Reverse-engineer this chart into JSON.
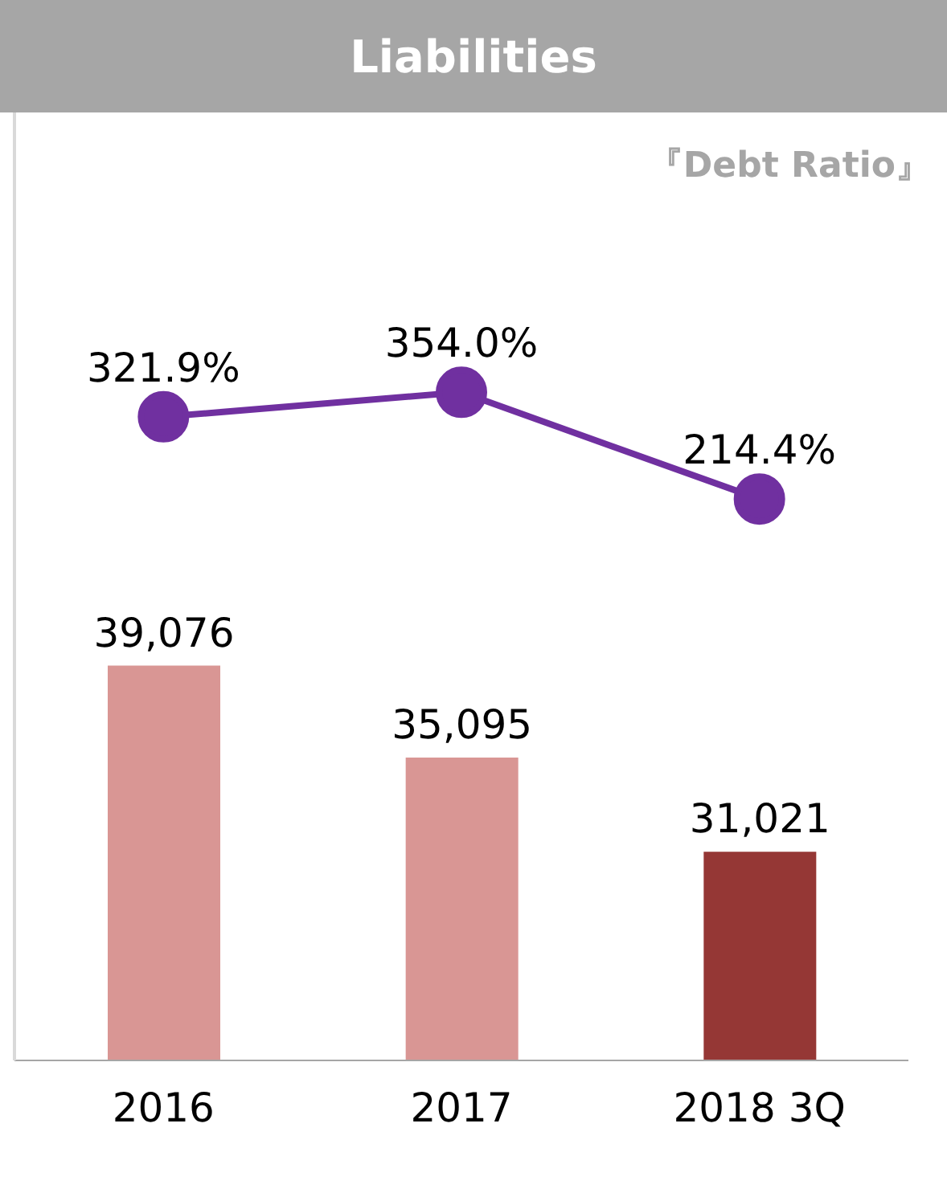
{
  "chart_data": {
    "type": "bar",
    "title": "Liabilities",
    "annotations": [
      "『Debt Ratio』"
    ],
    "categories": [
      "2016",
      "2017",
      "2018  3Q"
    ],
    "series": [
      {
        "type": "bar",
        "colors": [
          "#d99694",
          "#d99694",
          "#953735"
        ],
        "values": [
          39076,
          35095,
          31021
        ],
        "value_labels": [
          "39,076",
          "35,095",
          "31,021"
        ]
      },
      {
        "type": "line",
        "axis": "y2",
        "color": "#7030a0",
        "values": [
          321.9,
          354.0,
          214.4
        ],
        "value_labels": [
          "321.9%",
          "354.0%",
          "214.4%"
        ]
      }
    ],
    "ylim": [
      22000,
      63000
    ],
    "y2lim": [
      -520,
      720
    ],
    "tick_labels": "x",
    "marker": "circle",
    "line_style": "solid"
  }
}
